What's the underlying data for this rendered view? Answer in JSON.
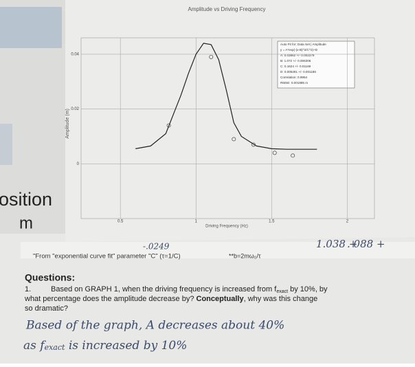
{
  "chart_data": {
    "type": "line",
    "title": "Amplitude vs Driving Frequency",
    "x_label": "Driving Frequency (Hz)",
    "y_label": "Amplitude (m)",
    "xlim": [
      0.24,
      2.18
    ],
    "ylim": [
      -0.02,
      0.046
    ],
    "xticks": [
      0.5,
      1,
      1.5,
      2
    ],
    "yticks": [
      0,
      0.02,
      0.04
    ],
    "grid": true,
    "series": [
      {
        "type": "line",
        "color": "#222222",
        "x": [
          0.6,
          0.7,
          0.8,
          0.9,
          0.95,
          1.0,
          1.05,
          1.1,
          1.15,
          1.2,
          1.25,
          1.3,
          1.4,
          1.5,
          1.6,
          1.8
        ],
        "values": [
          0.0055,
          0.0065,
          0.011,
          0.025,
          0.033,
          0.04,
          0.044,
          0.0435,
          0.038,
          0.027,
          0.015,
          0.01,
          0.0065,
          0.0055,
          0.0053,
          0.0053
        ]
      },
      {
        "type": "scatter",
        "color": "#444444",
        "x": [
          0.82,
          1.1,
          1.25,
          1.38,
          1.52,
          1.64
        ],
        "values": [
          0.014,
          0.039,
          0.009,
          0.007,
          0.004,
          0.003
        ]
      }
    ],
    "fit_box": [
      "Auto Fit for: Data Set | Amplitude",
      "y = A*exp(-(x-B)^2/C^2)+D",
      "A: 0.03862 +/- 0.002379",
      "B: 1.072 +/- 0.006306",
      "C: 0.1624 +/- 0.01169",
      "D: 0.005281 +/- 0.001186",
      "Correlation: 0.9954",
      "RMSE: 0.001885 m"
    ]
  },
  "left_page": {
    "word": "osition",
    "unit": "m"
  },
  "strip": {
    "text": "\"From \"exponential curve fit\" parameter \"C\" (τ=1/C)",
    "formula": "**b=2mω₀/τ",
    "handwriting_1": "-.0249",
    "handwriting_2": "1.038 +",
    "handwriting_3": ". 088 +"
  },
  "questions": {
    "heading": "Questions:",
    "number": "1.",
    "parts": [
      "Based on GRAPH 1, when the driving frequency is increased from f",
      "exact",
      " by 10%, by",
      "what percentage does the amplitude decrease by? ",
      "Conceptually",
      ", why was this change",
      "so dramatic?"
    ]
  },
  "answer": [
    "Based of the graph, A decreases about 40%",
    "as f",
    "exact",
    " is increased by 10%"
  ]
}
